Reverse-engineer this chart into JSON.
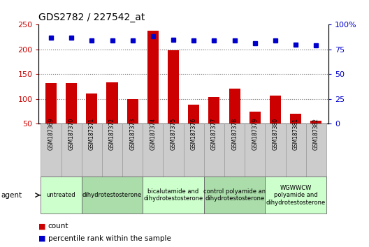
{
  "title": "GDS2782 / 227542_at",
  "samples": [
    "GSM187369",
    "GSM187370",
    "GSM187371",
    "GSM187372",
    "GSM187373",
    "GSM187374",
    "GSM187375",
    "GSM187376",
    "GSM187377",
    "GSM187378",
    "GSM187379",
    "GSM187380",
    "GSM187381",
    "GSM187382"
  ],
  "counts": [
    132,
    132,
    111,
    133,
    100,
    238,
    198,
    88,
    103,
    120,
    74,
    107,
    70,
    55
  ],
  "percentiles": [
    87,
    87,
    84,
    84,
    84,
    88,
    85,
    84,
    84,
    84,
    81,
    84,
    80,
    79
  ],
  "bar_color": "#cc0000",
  "dot_color": "#0000cc",
  "ylim_left": [
    50,
    250
  ],
  "ylim_right": [
    0,
    100
  ],
  "yticks_left": [
    50,
    100,
    150,
    200,
    250
  ],
  "yticks_right": [
    0,
    25,
    50,
    75,
    100
  ],
  "groups": [
    {
      "label": "untreated",
      "start": 0,
      "end": 2,
      "color": "#ccffcc"
    },
    {
      "label": "dihydrotestosterone",
      "start": 2,
      "end": 5,
      "color": "#aaddaa"
    },
    {
      "label": "bicalutamide and\ndihydrotestosterone",
      "start": 5,
      "end": 8,
      "color": "#ccffcc"
    },
    {
      "label": "control polyamide an\ndihydrotestosterone",
      "start": 8,
      "end": 11,
      "color": "#aaddaa"
    },
    {
      "label": "WGWWCW\npolyamide and\ndihydrotestosterone",
      "start": 11,
      "end": 14,
      "color": "#ccffcc"
    }
  ],
  "bar_width": 0.55,
  "sample_label_bg": "#cccccc",
  "grid_color": "#666666",
  "grid_linestyle": "dotted",
  "grid_linewidth": 0.8
}
